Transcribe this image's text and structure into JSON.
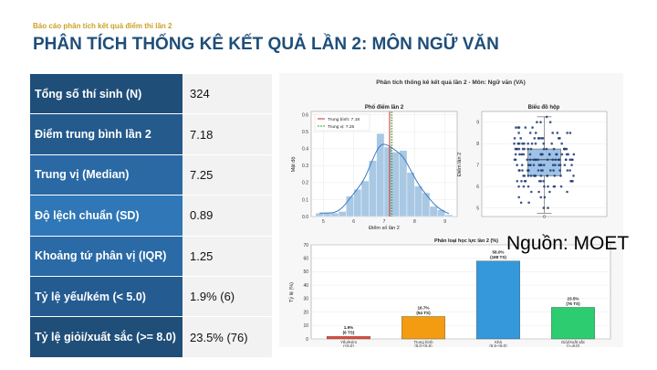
{
  "header": {
    "kicker": "Báo cáo phân tích kết quả điểm thi lần 2",
    "title": "PHÂN TÍCH THỐNG KÊ KẾT QUẢ LẦN 2: MÔN NGỮ VĂN"
  },
  "stats": [
    {
      "label": "Tổng số thí sinh (N)",
      "value": "324",
      "color": "#1f4e79"
    },
    {
      "label": "Điểm trung bình lần 2",
      "value": "7.18",
      "color": "#245a8c"
    },
    {
      "label": "Trung vị (Median)",
      "value": "7.25",
      "color": "#2a69a4"
    },
    {
      "label": "Độ lệch chuẩn (SD)",
      "value": "0.89",
      "color": "#2f77b6"
    },
    {
      "label": "Khoảng tứ phân vị (IQR)",
      "value": "1.25",
      "color": "#2a6aa6"
    },
    {
      "label": "Tỷ lệ yếu/kém (< 5.0)",
      "value": "1.9% (6)",
      "color": "#245b91"
    },
    {
      "label": "Tỷ lệ giỏi/xuất sắc (>= 8.0)",
      "value": "23.5% (76)",
      "color": "#1f4e79"
    }
  ],
  "source_note": "Nguồn: MOET",
  "figure_title": "Phân tích thống kê kết quả lần 2 - Môn: Ngữ văn (VA)",
  "chart_data": [
    {
      "type": "bar",
      "title": "Phổ điểm lần 2",
      "xlabel": "Điểm số lần 2",
      "ylabel": "Mật độ",
      "x_ticks": [
        "5",
        "6",
        "7",
        "8",
        "9"
      ],
      "y_ticks": [
        "0.0",
        "0.1",
        "0.2",
        "0.3",
        "0.4",
        "0.5",
        "0.6"
      ],
      "xlim": [
        4.6,
        9.4
      ],
      "ylim": [
        0,
        0.62
      ],
      "bin_width": 0.25,
      "bins_start": [
        4.75,
        5.0,
        5.25,
        5.5,
        5.75,
        6.0,
        6.25,
        6.5,
        6.75,
        7.0,
        7.25,
        7.5,
        7.75,
        8.0,
        8.25,
        8.5,
        8.75,
        9.0
      ],
      "density": [
        0.02,
        0.02,
        0.02,
        0.03,
        0.12,
        0.16,
        0.21,
        0.33,
        0.49,
        0.41,
        0.38,
        0.39,
        0.26,
        0.18,
        0.14,
        0.06,
        0.04,
        0.01
      ],
      "legend": [
        {
          "label": "Trung bình: 7.18",
          "color": "#d62728"
        },
        {
          "label": "Trung vị: 7.25",
          "color": "#2ca02c"
        }
      ],
      "mean": 7.18,
      "median": 7.25,
      "bar_color": "#a9c8e4",
      "kde_color": "#3a7bbf"
    },
    {
      "type": "scatter",
      "title": "Biểu đồ hộp",
      "ylabel": "Điểm lần 2",
      "y_ticks": [
        "5",
        "6",
        "7",
        "8",
        "9"
      ],
      "ylim": [
        4.6,
        9.5
      ],
      "box": {
        "q1": 6.5,
        "median": 7.25,
        "q3": 7.75,
        "whisker_low": 4.75,
        "whisker_high": 9.25
      },
      "point_color": "#1f3b73"
    },
    {
      "type": "bar",
      "title": "Phân loại học lực lần 2 (%)",
      "ylabel": "Tỷ lệ (%)",
      "y_ticks": [
        "0",
        "10",
        "20",
        "30",
        "40",
        "50",
        "60",
        "70"
      ],
      "ylim": [
        0,
        70
      ],
      "categories": [
        {
          "line1": "Yếu/Kém",
          "line2": "(<5.0)"
        },
        {
          "line1": "Trung bình",
          "line2": "(5.0-<6.5)"
        },
        {
          "line1": "Khá",
          "line2": "(6.5-<8.0)"
        },
        {
          "line1": "Giỏi/Xuất sắc",
          "line2": "(>=8.0)"
        }
      ],
      "values": [
        1.9,
        16.7,
        58.0,
        23.5
      ],
      "data_labels": [
        {
          "pct": "1.9%",
          "count": "(6 TS)"
        },
        {
          "pct": "16.7%",
          "count": "(54 TS)"
        },
        {
          "pct": "58.0%",
          "count": "(188 TS)"
        },
        {
          "pct": "23.5%",
          "count": "(76 TS)"
        }
      ],
      "colors": [
        "#e74c3c",
        "#f39c12",
        "#3498db",
        "#2ecc71"
      ]
    }
  ]
}
